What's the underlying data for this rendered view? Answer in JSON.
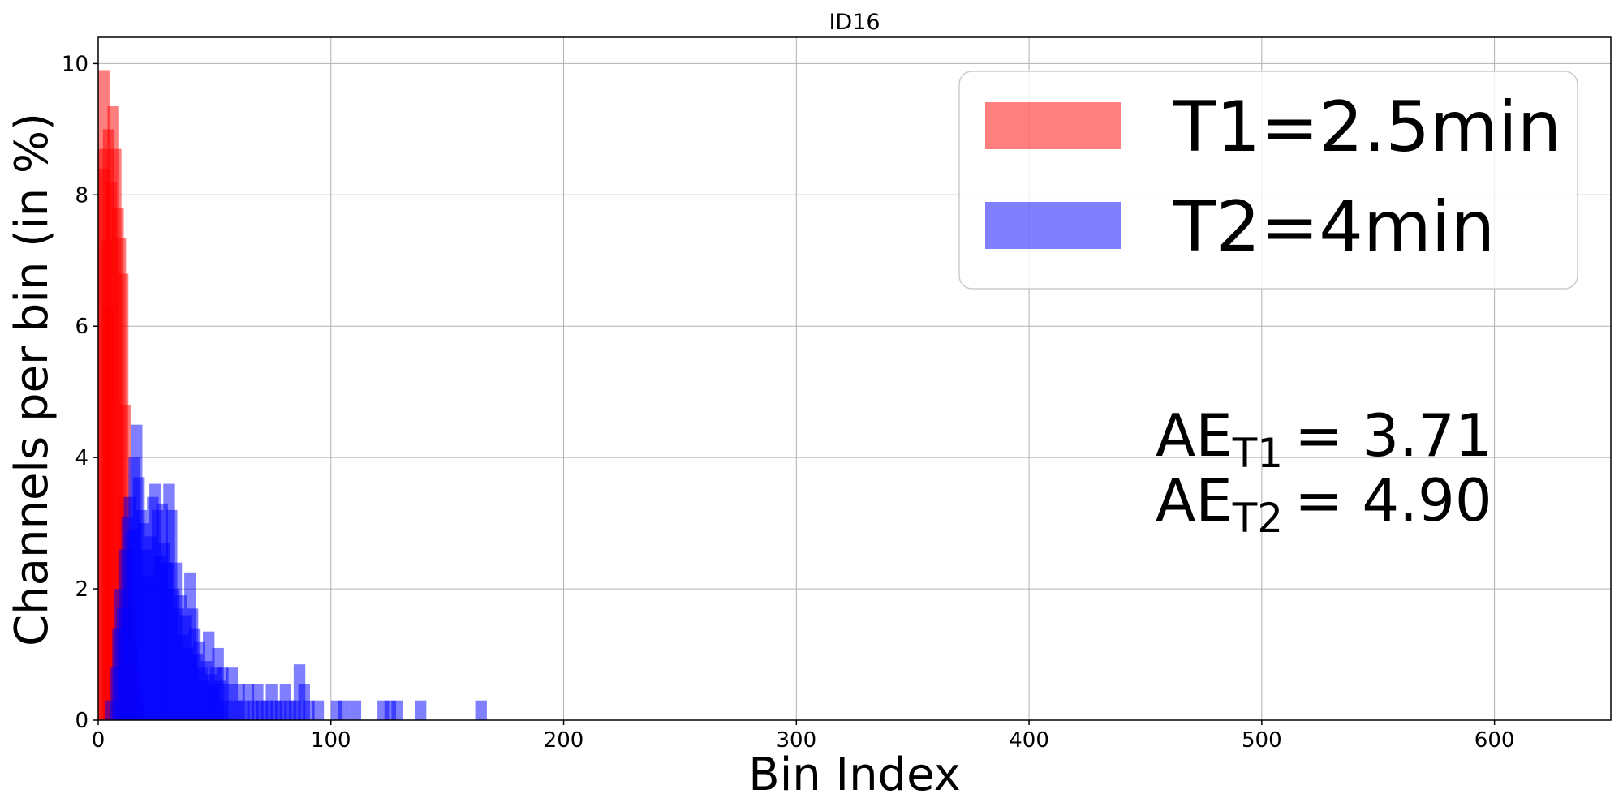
{
  "chart_data": {
    "type": "bar",
    "title": "ID16",
    "xlabel": "Bin Index",
    "ylabel": "Channels per bin (in %)",
    "xlim": [
      0,
      650
    ],
    "ylim": [
      0,
      10.4
    ],
    "xticks": [
      0,
      100,
      200,
      300,
      400,
      500,
      600
    ],
    "yticks": [
      0,
      2,
      4,
      6,
      8,
      10
    ],
    "grid": true,
    "legend_position": "top-right",
    "bar_width": 5,
    "bar_alpha": 0.5,
    "series": [
      {
        "name": "T1=2.5min",
        "color": "#ff0000",
        "bars": [
          [
            0,
            9.9
          ],
          [
            0,
            8.7
          ],
          [
            0,
            8.4
          ],
          [
            1,
            7.3
          ],
          [
            2,
            6.3
          ],
          [
            2,
            9.0
          ],
          [
            3,
            8.2
          ],
          [
            4,
            9.35
          ],
          [
            5,
            8.7
          ],
          [
            6,
            7.8
          ],
          [
            7,
            7.35
          ],
          [
            8,
            6.8
          ],
          [
            9,
            4.8
          ],
          [
            9,
            3.4
          ],
          [
            10,
            2.6
          ],
          [
            11,
            1.8
          ],
          [
            12,
            1.2
          ],
          [
            13,
            0.8
          ],
          [
            14,
            0.5
          ],
          [
            15,
            0.3
          ]
        ]
      },
      {
        "name": "T2=4min",
        "color": "#0000ff",
        "bars": [
          [
            3,
            0.3
          ],
          [
            5,
            0.8
          ],
          [
            6,
            1.4
          ],
          [
            7,
            2.0
          ],
          [
            8,
            1.7
          ],
          [
            9,
            2.6
          ],
          [
            10,
            3.1
          ],
          [
            11,
            3.4
          ],
          [
            12,
            2.9
          ],
          [
            13,
            4.0
          ],
          [
            14,
            4.5
          ],
          [
            15,
            3.7
          ],
          [
            16,
            3.2
          ],
          [
            17,
            3.0
          ],
          [
            18,
            2.6
          ],
          [
            19,
            2.2
          ],
          [
            20,
            2.8
          ],
          [
            21,
            3.4
          ],
          [
            22,
            3.6
          ],
          [
            23,
            3.2
          ],
          [
            24,
            2.5
          ],
          [
            25,
            3.3
          ],
          [
            26,
            2.7
          ],
          [
            27,
            2.4
          ],
          [
            28,
            3.6
          ],
          [
            29,
            3.2
          ],
          [
            30,
            2.0
          ],
          [
            31,
            2.4
          ],
          [
            32,
            1.7
          ],
          [
            33,
            1.9
          ],
          [
            34,
            1.3
          ],
          [
            35,
            1.6
          ],
          [
            36,
            1.1
          ],
          [
            37,
            2.25
          ],
          [
            38,
            1.7
          ],
          [
            39,
            1.4
          ],
          [
            40,
            1.0
          ],
          [
            41,
            1.2
          ],
          [
            42,
            0.8
          ],
          [
            43,
            0.6
          ],
          [
            44,
            0.9
          ],
          [
            45,
            1.35
          ],
          [
            46,
            0.7
          ],
          [
            47,
            0.55
          ],
          [
            48,
            0.8
          ],
          [
            49,
            1.1
          ],
          [
            50,
            0.6
          ],
          [
            51,
            0.8
          ],
          [
            52,
            0.3
          ],
          [
            53,
            0.55
          ],
          [
            55,
            0.8
          ],
          [
            57,
            0.3
          ],
          [
            58,
            0.55
          ],
          [
            60,
            0.3
          ],
          [
            62,
            0.55
          ],
          [
            64,
            0.3
          ],
          [
            66,
            0.55
          ],
          [
            68,
            0.3
          ],
          [
            70,
            0.3
          ],
          [
            72,
            0.55
          ],
          [
            74,
            0.3
          ],
          [
            76,
            0.3
          ],
          [
            78,
            0.55
          ],
          [
            80,
            0.3
          ],
          [
            82,
            0.3
          ],
          [
            84,
            0.85
          ],
          [
            86,
            0.55
          ],
          [
            88,
            0.3
          ],
          [
            92,
            0.3
          ],
          [
            100,
            0.3
          ],
          [
            103,
            0.3
          ],
          [
            108,
            0.3
          ],
          [
            120,
            0.3
          ],
          [
            123,
            0.3
          ],
          [
            126,
            0.3
          ],
          [
            136,
            0.3
          ],
          [
            162,
            0.3
          ]
        ]
      }
    ],
    "annotations": [
      {
        "base": "AE",
        "subscript": "T1",
        "value": "= 3.71"
      },
      {
        "base": "AE",
        "subscript": "T2",
        "value": "= 4.90"
      }
    ]
  }
}
